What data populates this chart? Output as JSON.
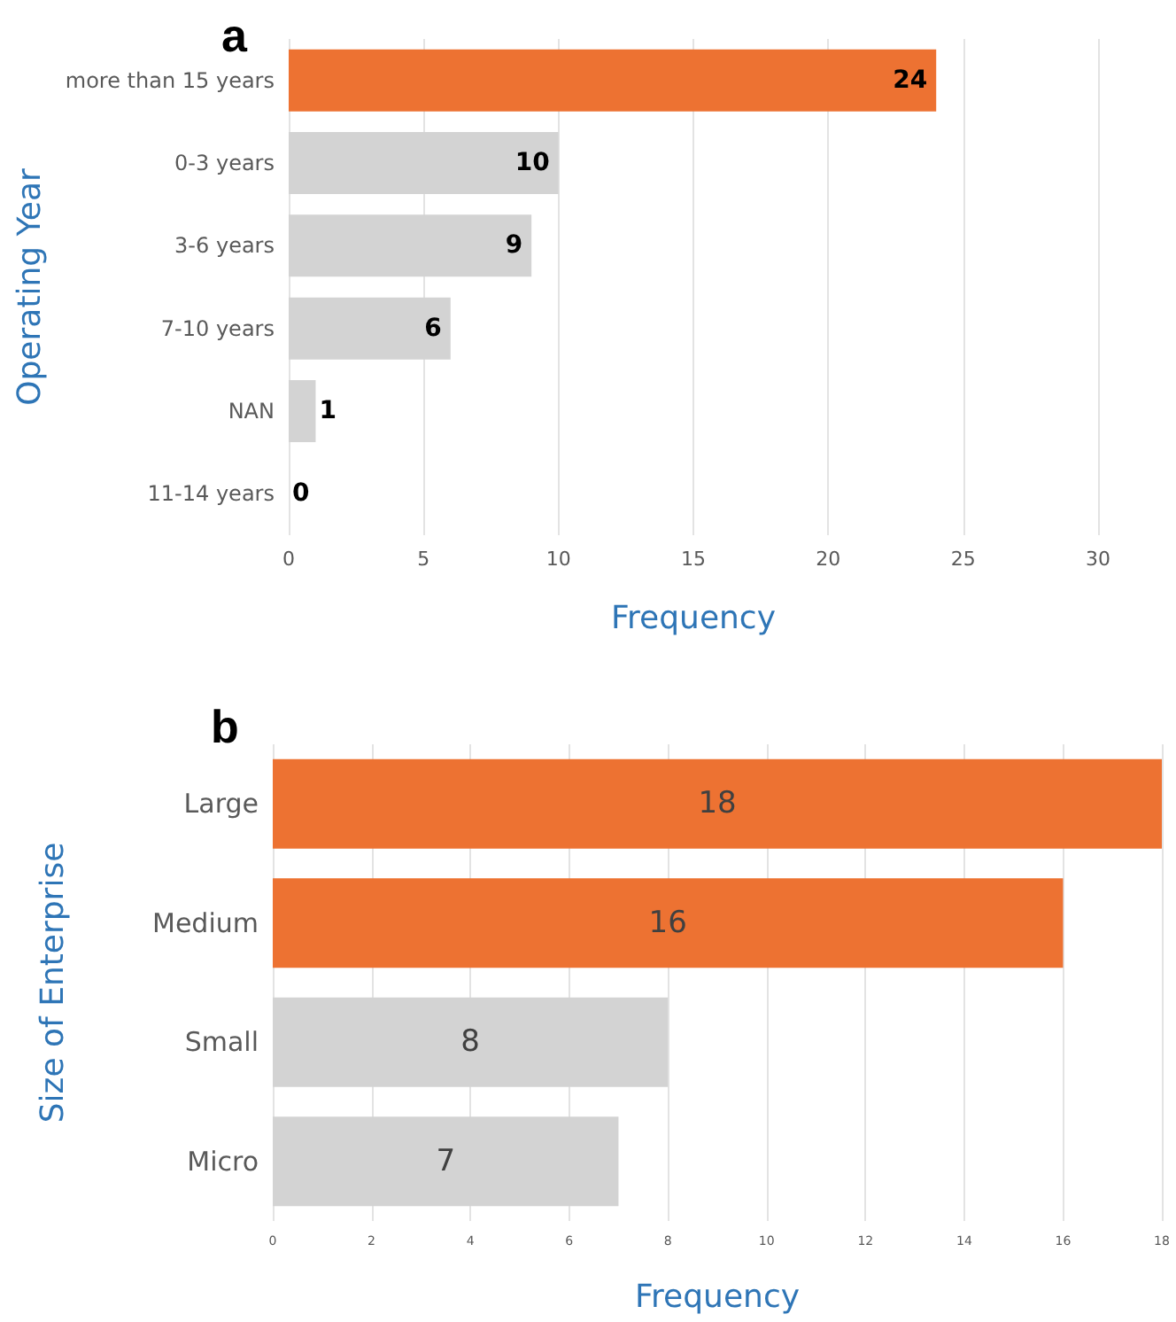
{
  "chart_data": [
    {
      "type": "bar",
      "title": "a",
      "orientation": "horizontal",
      "xlabel": "Frequency",
      "ylabel": "Operating Year",
      "categories": [
        "more than 15 years",
        "0-3 years",
        "3-6 years",
        "7-10 years",
        "NAN",
        "11-14 years"
      ],
      "values": [
        24,
        10,
        9,
        6,
        1,
        0
      ],
      "colors": [
        "#ed7232",
        "#d3d3d3",
        "#d3d3d3",
        "#d3d3d3",
        "#d3d3d3",
        "#d3d3d3"
      ],
      "xlim": [
        0,
        30
      ],
      "xticks": [
        0,
        5,
        10,
        15,
        20,
        25,
        30
      ],
      "grid": "x",
      "data_labels": true
    },
    {
      "type": "bar",
      "title": "b",
      "orientation": "horizontal",
      "xlabel": "Frequency",
      "ylabel": "Size of Enterprise",
      "categories": [
        "Large",
        "Medium",
        "Small",
        "Micro"
      ],
      "values": [
        18,
        16,
        8,
        7
      ],
      "colors": [
        "#ed7232",
        "#ed7232",
        "#d3d3d3",
        "#d3d3d3"
      ],
      "xlim": [
        0,
        18
      ],
      "xticks": [
        0,
        2,
        4,
        6,
        8,
        10,
        12,
        14,
        16,
        18
      ],
      "grid": "x",
      "data_labels": true
    }
  ]
}
